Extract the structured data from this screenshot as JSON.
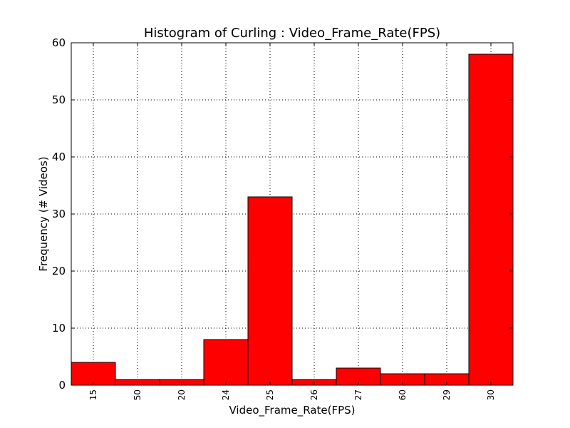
{
  "chart_data": {
    "type": "bar",
    "title": "Histogram of Curling : Video_Frame_Rate(FPS)",
    "xlabel": "Video_Frame_Rate(FPS)",
    "ylabel": "Frequency (# Videos)",
    "categories": [
      "15",
      "50",
      "20",
      "24",
      "25",
      "26",
      "27",
      "60",
      "29",
      "30"
    ],
    "values": [
      4,
      1,
      1,
      8,
      33,
      1,
      3,
      2,
      2,
      58
    ],
    "ylim": [
      0,
      60
    ],
    "yticks": [
      "0",
      "10",
      "20",
      "30",
      "40",
      "50",
      "60"
    ],
    "grid": true,
    "bar_color": "#ff0000"
  }
}
